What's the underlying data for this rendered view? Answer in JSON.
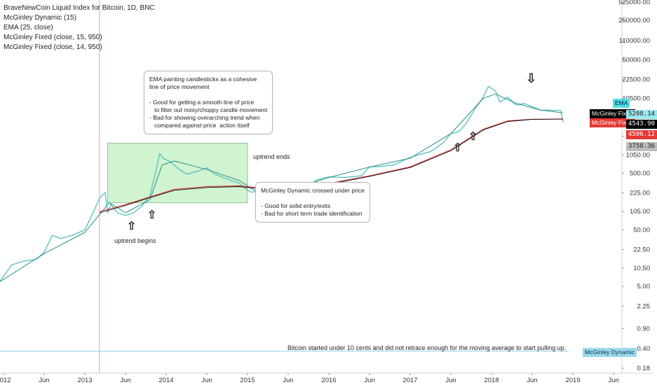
{
  "legend": {
    "title": "BraveNewCoin Liquid Index for Bitcoin, 1D, BNC",
    "line1": "McGinley Dynamic (15)",
    "line2": "EMA (25, close)",
    "line3": "McGinley Fixed (close, 15, 950)",
    "line4": "McGinley Fixed (close, 14, 950)"
  },
  "annotations": {
    "ema_callout": "EMA painting candlesticks as a cohesive\nline of price movement\n\n- Good for getting a smooth line of price\n   to filter out noisy/choppy candle movement\n- Bad for showing overarching trend when\n   compared against price  action itself",
    "mcginley_callout": "McGinley Dynamic crossed under price\n\n- Good for solid entry/exits\n- Bad for short term trade identification",
    "uptrend_begins": "uptrend begins",
    "uptrend_ends": "uptrend ends",
    "bottom_note": "Bitcoin started under 10 cents and did not retrace enough for the moving average to start pulling up."
  },
  "price_labels": {
    "ema_tag": "EMA",
    "mcginley_fixed_1": "McGinley Fixed",
    "mcginley_fixed_2": "McGinley Fixed",
    "mcginley_dynamic": "McGinley Dynamic",
    "val_5208": "5208.14",
    "val_4543": "4543.90",
    "val_4506": "4506.12",
    "val_3758": "3758.36"
  },
  "colors": {
    "price": "#5bc4c4",
    "mcginley_dynamic": "#2c8f86",
    "ema": "#222222",
    "mcginley_fixed_red": "#e53935",
    "mcginley_fixed_black": "#000000",
    "highlight_box": "#c8f2c8",
    "highlight_border": "#6aa86a",
    "vertical_marker": "#f19999"
  },
  "chart_data": {
    "type": "line",
    "title": "BraveNewCoin Liquid Index for Bitcoin, 1D, BNC",
    "y_scale": "log",
    "ylim": [
      0.18,
      525000
    ],
    "y_ticks": [
      525000,
      250000,
      110000,
      50000,
      22500,
      10500,
      5000,
      2250,
      1050,
      500,
      225,
      105,
      50,
      22.5,
      10.5,
      5,
      2.25,
      0.9,
      0.4,
      0.18
    ],
    "y_tick_labels": [
      "525000.00",
      "250000.00",
      "110000.00",
      "50000.00",
      "22500.00",
      "10500.00",
      "5000.00",
      "2250.00",
      "1050.00",
      "500.00",
      "225.00",
      "105.00",
      "50.00",
      "22.50",
      "10.50",
      "5.00",
      "2.25",
      "0.90",
      "0.40",
      "0.18"
    ],
    "x_ticks": [
      2012,
      2012.5,
      2013,
      2013.5,
      2014,
      2014.5,
      2015,
      2015.5,
      2016,
      2016.5,
      2017,
      2017.5,
      2018,
      2018.5,
      2019,
      2019.5
    ],
    "x_tick_labels": [
      "2012",
      "Jun",
      "2013",
      "Jun",
      "2014",
      "Jun",
      "2015",
      "Jun",
      "2016",
      "Jun",
      "2017",
      "Jun",
      "2018",
      "Jun",
      "2019",
      "Jun"
    ],
    "xlim": [
      2011.95,
      2019.7
    ],
    "series": [
      {
        "name": "BraveNewCoin Liquid Index for Bitcoin",
        "x": [
          2011.95,
          2012.0,
          2012.1,
          2012.25,
          2012.4,
          2012.5,
          2012.6,
          2012.7,
          2012.85,
          2013.0,
          2013.1,
          2013.18,
          2013.25,
          2013.28,
          2013.32,
          2013.4,
          2013.5,
          2013.6,
          2013.7,
          2013.8,
          2013.88,
          2013.92,
          2013.97,
          2014.05,
          2014.15,
          2014.25,
          2014.4,
          2014.5,
          2014.6,
          2014.7,
          2014.8,
          2014.9,
          2015.0,
          2015.05,
          2015.2,
          2015.4,
          2015.5,
          2015.6,
          2015.75,
          2015.85,
          2016.0,
          2016.2,
          2016.4,
          2016.5,
          2016.6,
          2016.8,
          2017.0,
          2017.1,
          2017.25,
          2017.4,
          2017.5,
          2017.6,
          2017.7,
          2017.8,
          2017.88,
          2017.96,
          2018.05,
          2018.1,
          2018.2,
          2018.3,
          2018.4,
          2018.5,
          2018.6,
          2018.7,
          2018.8,
          2018.85,
          2018.88
        ],
        "y": [
          6,
          7.5,
          12,
          14,
          15,
          20,
          40,
          35,
          40,
          50,
          100,
          180,
          230,
          100,
          140,
          100,
          90,
          100,
          130,
          200,
          600,
          1100,
          900,
          800,
          600,
          480,
          550,
          620,
          480,
          420,
          370,
          330,
          250,
          230,
          250,
          250,
          260,
          230,
          300,
          380,
          430,
          420,
          450,
          650,
          650,
          700,
          950,
          1050,
          1200,
          1700,
          2500,
          2700,
          4000,
          7000,
          10000,
          17000,
          14000,
          9000,
          11000,
          8000,
          8500,
          7500,
          6500,
          6500,
          6400,
          6400,
          4000
        ]
      },
      {
        "name": "McGinley Dynamic (15)",
        "x": [
          2011.95,
          2012.5,
          2013.0,
          2013.3,
          2013.5,
          2013.8,
          2013.95,
          2014.1,
          2014.5,
          2014.9,
          2015.1,
          2015.5,
          2016.0,
          2016.5,
          2017.0,
          2017.5,
          2017.9,
          2018.05,
          2018.3,
          2018.6,
          2018.88
        ],
        "y": [
          6,
          19,
          45,
          150,
          100,
          170,
          700,
          820,
          580,
          370,
          240,
          250,
          420,
          640,
          920,
          2500,
          10500,
          12500,
          8600,
          6500,
          5800
        ]
      },
      {
        "name": "McGinley Fixed (close, 15, 950)",
        "x": [
          2013.18,
          2013.5,
          2013.8,
          2014.1,
          2014.5,
          2014.9,
          2015.1,
          2015.5,
          2016.0,
          2016.5,
          2017.0,
          2017.5,
          2017.9,
          2018.2,
          2018.5,
          2018.88
        ],
        "y": [
          105,
          140,
          190,
          260,
          290,
          300,
          280,
          270,
          330,
          450,
          650,
          1300,
          3000,
          4200,
          4500,
          4506.12
        ]
      },
      {
        "name": "McGinley Fixed (close, 14, 950)",
        "x": [
          2013.18,
          2013.5,
          2013.8,
          2014.1,
          2014.5,
          2014.9,
          2015.1,
          2015.5,
          2016.0,
          2016.5,
          2017.0,
          2017.5,
          2017.9,
          2018.2,
          2018.5,
          2018.88
        ],
        "y": [
          100,
          135,
          185,
          250,
          280,
          290,
          270,
          262,
          320,
          440,
          630,
          1250,
          2900,
          4100,
          4450,
          4543.9
        ]
      }
    ]
  }
}
